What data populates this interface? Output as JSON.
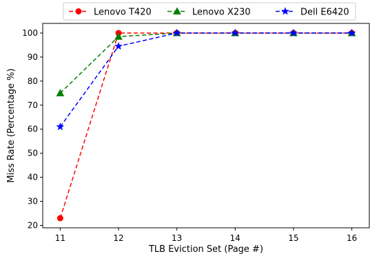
{
  "chart_data": {
    "type": "line",
    "xlabel": "TLB Eviction Set (Page #)",
    "ylabel": "Miss Rate (Percentage %)",
    "x": [
      11,
      12,
      13,
      14,
      15,
      16
    ],
    "xlim": [
      10.7,
      16.3
    ],
    "ylim": [
      19,
      104
    ],
    "xticks": [
      "11",
      "12",
      "13",
      "14",
      "15",
      "16"
    ],
    "yticks": [
      "20",
      "30",
      "40",
      "50",
      "60",
      "70",
      "80",
      "90",
      "100"
    ],
    "grid": false,
    "legend_position": "top (outside plot)",
    "series": [
      {
        "name": "Lenovo T420",
        "color": "#ff0000",
        "marker": "circle",
        "line_style": "dashed",
        "values": [
          23,
          100,
          100,
          100,
          100,
          100
        ]
      },
      {
        "name": "Lenovo X230",
        "color": "#008000",
        "marker": "triangle",
        "line_style": "dashed",
        "values": [
          75,
          98.5,
          100,
          100,
          100,
          100
        ]
      },
      {
        "name": "Dell E6420",
        "color": "#0000ff",
        "marker": "star",
        "line_style": "dashed",
        "values": [
          61,
          94.5,
          100,
          100,
          100,
          100
        ]
      }
    ]
  }
}
